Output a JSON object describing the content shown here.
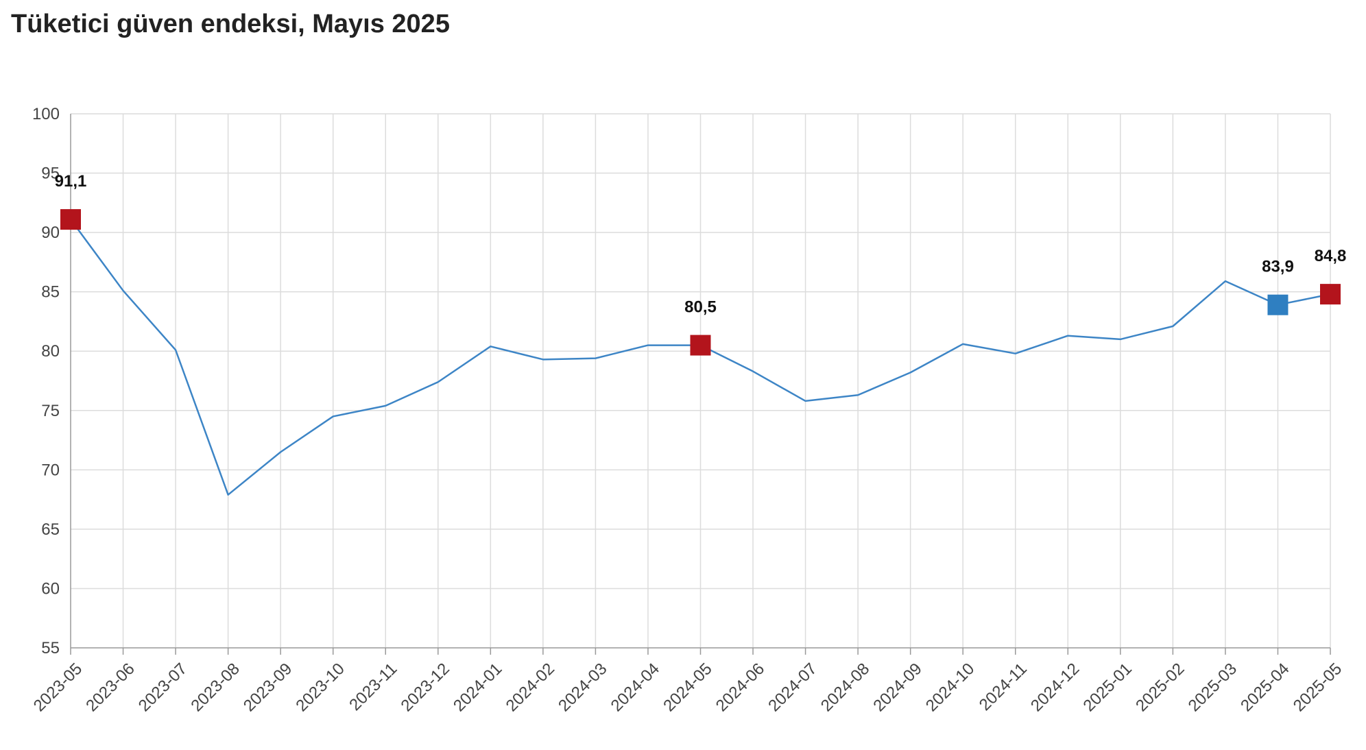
{
  "chart_data": {
    "type": "line",
    "title": "Tüketici güven endeksi, Mayıs 2025",
    "xlabel": "",
    "ylabel": "",
    "ylim": [
      55,
      100
    ],
    "yticks": [
      55,
      60,
      65,
      70,
      75,
      80,
      85,
      90,
      95,
      100
    ],
    "grid": true,
    "legend": "none",
    "x": [
      "2023-05",
      "2023-06",
      "2023-07",
      "2023-08",
      "2023-09",
      "2023-10",
      "2023-11",
      "2023-12",
      "2024-01",
      "2024-02",
      "2024-03",
      "2024-04",
      "2024-05",
      "2024-06",
      "2024-07",
      "2024-08",
      "2024-09",
      "2024-10",
      "2024-11",
      "2024-12",
      "2025-01",
      "2025-02",
      "2025-03",
      "2025-04",
      "2025-05"
    ],
    "series": [
      {
        "values": [
          91.1,
          85.1,
          80.1,
          67.9,
          71.5,
          74.5,
          75.4,
          77.4,
          80.4,
          79.3,
          79.4,
          80.5,
          80.5,
          78.3,
          75.8,
          76.3,
          78.2,
          80.6,
          79.8,
          81.3,
          81.0,
          82.1,
          85.9,
          83.9,
          84.8
        ],
        "color": "#3d85c6"
      }
    ],
    "annotations": [
      {
        "x": "2023-05",
        "label": "91,1",
        "color": "#b3141c"
      },
      {
        "x": "2024-05",
        "label": "80,5",
        "color": "#b3141c"
      },
      {
        "x": "2025-04",
        "label": "83,9",
        "color": "#2f7fc1"
      },
      {
        "x": "2025-05",
        "label": "84,8",
        "color": "#b3141c"
      }
    ]
  }
}
